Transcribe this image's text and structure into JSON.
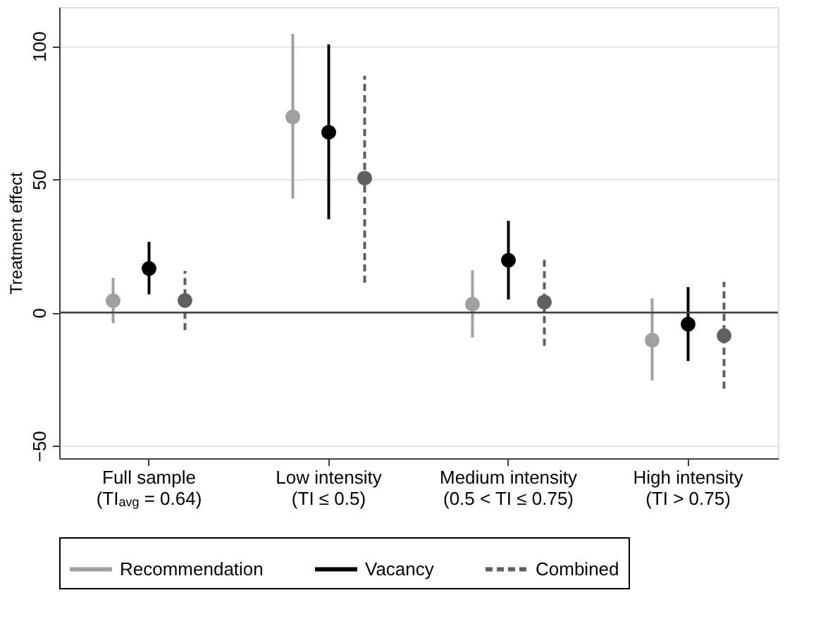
{
  "chart_data": {
    "type": "scatter",
    "ylabel": "Treatment effect",
    "categories": [
      "Full sample\n(TI$_{avg}$ = 0.64)",
      "Low intensity\n(TI ≤ 0.5)",
      "Medium intensity\n(0.5 < TI ≤ 0.75)",
      "High intensity\n(TI > 0.75)"
    ],
    "series": [
      {
        "name": "Recommendation",
        "color": "#a0a0a0",
        "line_style": "solid",
        "values": [
          4.4,
          73.4,
          3.1,
          -10.4
        ],
        "errors": [
          [
            -4,
            13
          ],
          [
            42.7,
            104.5
          ],
          [
            -9.4,
            15.8
          ],
          [
            -25.5,
            5.3
          ]
        ]
      },
      {
        "name": "Vacancy",
        "color": "#000000",
        "line_style": "solid",
        "values": [
          16.5,
          67.6,
          19.6,
          -4.4
        ],
        "errors": [
          [
            6.8,
            26.5
          ],
          [
            35,
            100.6
          ],
          [
            4.9,
            34.4
          ],
          [
            -18.2,
            9.5
          ]
        ]
      },
      {
        "name": "Combined",
        "color": "#606060",
        "line_style": "dashed",
        "values": [
          4.5,
          50.4,
          3.9,
          -8.7
        ],
        "errors": [
          [
            -6.6,
            15.6
          ],
          [
            11.2,
            88.8
          ],
          [
            -12.5,
            19.9
          ],
          [
            -28.6,
            11.5
          ]
        ]
      }
    ],
    "ylim": [
      -54.7,
      114.6
    ],
    "yticks": [
      -50,
      0,
      50,
      100
    ],
    "grid": "y",
    "marker": "circle",
    "legend": "bottom",
    "ref_lines": [
      {
        "axis": "y",
        "value": 0,
        "color": "#404040"
      }
    ]
  }
}
